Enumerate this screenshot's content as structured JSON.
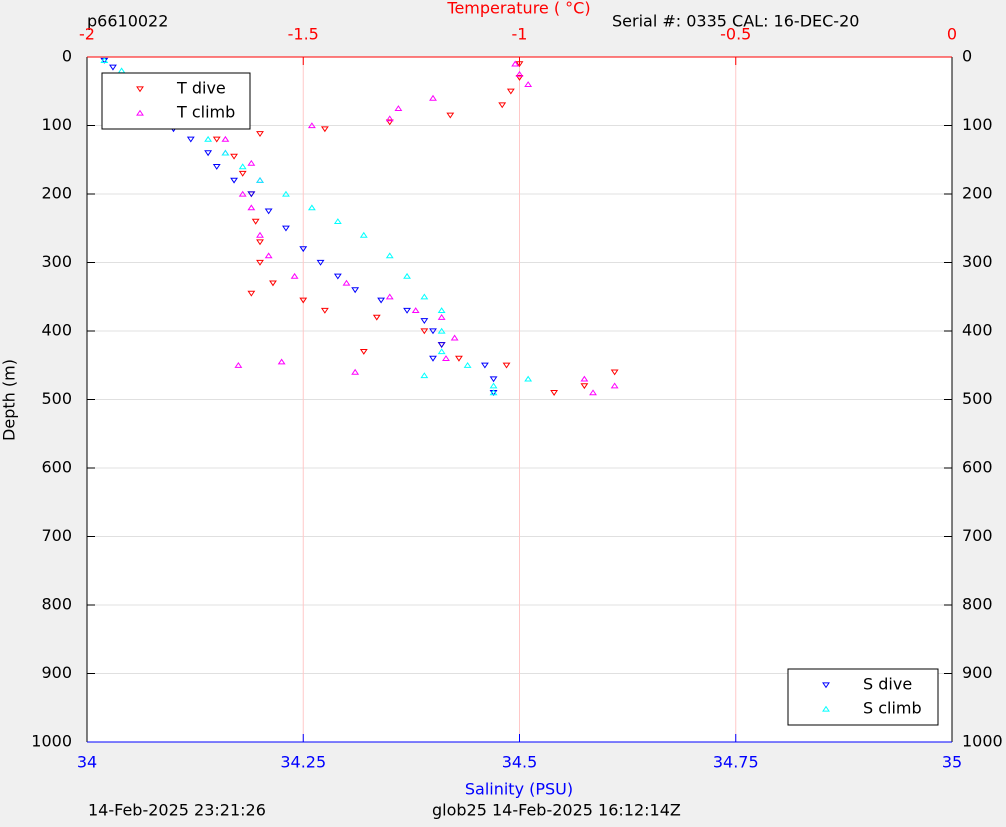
{
  "chart_data": {
    "type": "scatter",
    "title": "p6610022",
    "subtitle": "Serial #: 0335  CAL: 16-DEC-20",
    "x_label": "Salinity (PSU)",
    "x2_label": "Temperature (   °C)",
    "y_label": "Depth (m)",
    "footer_left": "14-Feb-2025 23:21:26",
    "footer_right": "glob25 14-Feb-2025 16:12:14Z",
    "xlim": [
      34,
      35
    ],
    "xticks": [
      34,
      34.25,
      34.5,
      34.75,
      35
    ],
    "x2lim": [
      -2,
      0
    ],
    "x2ticks": [
      -2,
      -1.5,
      -1,
      -0.5,
      0
    ],
    "ylim": [
      0,
      1000
    ],
    "yticks": [
      0,
      100,
      200,
      300,
      400,
      500,
      600,
      700,
      800,
      900,
      1000
    ],
    "y_reversed": true,
    "grid": true,
    "x_color": "#0000ff",
    "x2_color": "#ff0000",
    "x2_grid_color": "#ffc8c8",
    "y_grid_color": "#e0e0e0",
    "series": [
      {
        "name": "T dive",
        "color": "#ff0000",
        "marker": "v",
        "axis": "x2",
        "x": [
          -1.0,
          -1.0,
          -1.02,
          -1.04,
          -1.16,
          -1.3,
          -1.45,
          -1.6,
          -1.7,
          -1.66,
          -1.64,
          -1.62,
          -1.61,
          -1.6,
          -1.6,
          -1.57,
          -1.62,
          -1.5,
          -1.45,
          -1.33,
          -1.22,
          -1.18,
          -1.14,
          -1.36,
          -1.03,
          -0.92,
          -0.85,
          -0.78
        ],
        "y": [
          10,
          30,
          50,
          70,
          85,
          95,
          105,
          112,
          120,
          145,
          170,
          200,
          240,
          270,
          300,
          330,
          345,
          355,
          370,
          380,
          400,
          420,
          440,
          430,
          450,
          490,
          480,
          460
        ]
      },
      {
        "name": "T climb",
        "color": "#ff00ff",
        "marker": "^",
        "axis": "x2",
        "x": [
          -1.01,
          -1.0,
          -0.98,
          -1.2,
          -1.28,
          -1.3,
          -1.48,
          -1.68,
          -1.68,
          -1.62,
          -1.6,
          -1.64,
          -1.62,
          -1.6,
          -1.58,
          -1.52,
          -1.4,
          -1.3,
          -1.24,
          -1.18,
          -1.15,
          -1.17,
          -1.65,
          -1.55,
          -1.38,
          -0.85,
          -0.78,
          -0.83
        ],
        "y": [
          10,
          25,
          40,
          60,
          75,
          90,
          100,
          120,
          140,
          155,
          180,
          200,
          220,
          260,
          290,
          320,
          330,
          350,
          370,
          380,
          410,
          440,
          450,
          445,
          460,
          470,
          480,
          490
        ]
      },
      {
        "name": "S dive",
        "color": "#0000ff",
        "marker": "v",
        "axis": "x",
        "x": [
          34.02,
          34.03,
          34.04,
          34.05,
          34.06,
          34.08,
          34.1,
          34.12,
          34.14,
          34.15,
          34.17,
          34.19,
          34.21,
          34.23,
          34.25,
          34.27,
          34.29,
          34.31,
          34.34,
          34.37,
          34.39,
          34.4,
          34.41,
          34.4,
          34.46,
          34.47,
          34.47
        ],
        "y": [
          5,
          15,
          30,
          50,
          70,
          90,
          105,
          120,
          140,
          160,
          180,
          200,
          225,
          250,
          280,
          300,
          320,
          340,
          355,
          370,
          385,
          400,
          420,
          440,
          450,
          470,
          490
        ]
      },
      {
        "name": "S climb",
        "color": "#00ffff",
        "marker": "^",
        "axis": "x",
        "x": [
          34.02,
          34.04,
          34.06,
          34.08,
          34.1,
          34.12,
          34.14,
          34.16,
          34.18,
          34.2,
          34.23,
          34.26,
          34.29,
          34.32,
          34.35,
          34.37,
          34.39,
          34.41,
          34.41,
          34.41,
          34.39,
          34.44,
          34.47,
          34.47,
          34.51
        ],
        "y": [
          5,
          20,
          40,
          60,
          80,
          100,
          120,
          140,
          160,
          180,
          200,
          220,
          240,
          260,
          290,
          320,
          350,
          370,
          400,
          430,
          465,
          450,
          480,
          490,
          470
        ]
      }
    ]
  }
}
